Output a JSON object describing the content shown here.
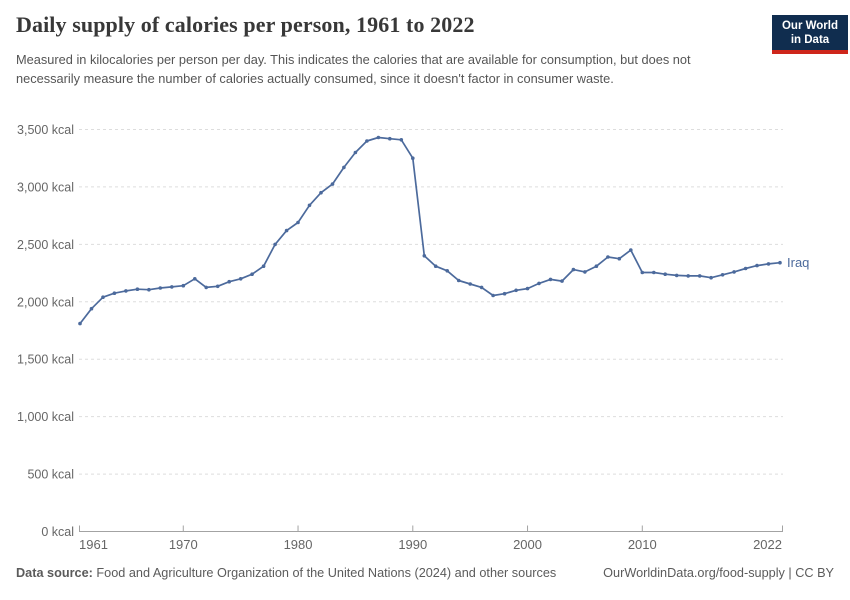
{
  "header": {
    "title": "Daily supply of calories per person, 1961 to 2022",
    "subtitle": "Measured in kilocalories per person per day. This indicates the calories that are available for consumption, but does not necessarily measure the number of calories actually consumed, since it doesn't factor in consumer waste.",
    "logo": {
      "line1": "Our World",
      "line2": "in Data",
      "bg_color": "#102D4F",
      "bar_color": "#CE261B"
    }
  },
  "chart_data": {
    "type": "line",
    "title": "Daily supply of calories per person, 1961 to 2022",
    "entity": "Iraq",
    "end_label": "Iraq",
    "line_color": "#4C6A9C",
    "grid": "horizontal-dashed",
    "grid_color": "#dddddd",
    "axis_color": "#a3a3a3",
    "tick_text_color": "#666666",
    "xlim": [
      1961,
      2022
    ],
    "ylim": [
      0,
      3500
    ],
    "xlabel": "",
    "ylabel": "",
    "xticks": [
      {
        "value": 1961,
        "label": "1961",
        "align": "start"
      },
      {
        "value": 1970,
        "label": "1970",
        "align": "middle"
      },
      {
        "value": 1980,
        "label": "1980",
        "align": "middle"
      },
      {
        "value": 1990,
        "label": "1990",
        "align": "middle"
      },
      {
        "value": 2000,
        "label": "2000",
        "align": "middle"
      },
      {
        "value": 2010,
        "label": "2010",
        "align": "middle"
      },
      {
        "value": 2022,
        "label": "2022",
        "align": "end"
      }
    ],
    "yticks": [
      {
        "value": 0,
        "label": "0 kcal"
      },
      {
        "value": 500,
        "label": "500 kcal"
      },
      {
        "value": 1000,
        "label": "1,000 kcal"
      },
      {
        "value": 1500,
        "label": "1,500 kcal"
      },
      {
        "value": 2000,
        "label": "2,000 kcal"
      },
      {
        "value": 2500,
        "label": "2,500 kcal"
      },
      {
        "value": 3000,
        "label": "3,000 kcal"
      },
      {
        "value": 3500,
        "label": "3,500 kcal"
      }
    ],
    "x": [
      1961,
      1962,
      1963,
      1964,
      1965,
      1966,
      1967,
      1968,
      1969,
      1970,
      1971,
      1972,
      1973,
      1974,
      1975,
      1976,
      1977,
      1978,
      1979,
      1980,
      1981,
      1982,
      1983,
      1984,
      1985,
      1986,
      1987,
      1988,
      1989,
      1990,
      1991,
      1992,
      1993,
      1994,
      1995,
      1996,
      1997,
      1998,
      1999,
      2000,
      2001,
      2002,
      2003,
      2004,
      2005,
      2006,
      2007,
      2008,
      2009,
      2010,
      2011,
      2012,
      2013,
      2014,
      2015,
      2016,
      2017,
      2018,
      2019,
      2020,
      2021,
      2022
    ],
    "series": [
      {
        "name": "Iraq",
        "color": "#4C6A9C",
        "values": [
          1810,
          1940,
          2040,
          2075,
          2095,
          2110,
          2105,
          2120,
          2130,
          2140,
          2200,
          2125,
          2135,
          2175,
          2200,
          2240,
          2310,
          2500,
          2620,
          2690,
          2840,
          2950,
          3025,
          3170,
          3300,
          3400,
          3430,
          3420,
          3410,
          3250,
          2400,
          2310,
          2270,
          2185,
          2155,
          2125,
          2055,
          2070,
          2100,
          2115,
          2160,
          2195,
          2180,
          2280,
          2260,
          2310,
          2390,
          2375,
          2450,
          2255,
          2255,
          2240,
          2230,
          2225,
          2225,
          2210,
          2235,
          2260,
          2290,
          2315,
          2330,
          2340
        ]
      }
    ]
  },
  "footer": {
    "datasource_label": "Data source:",
    "datasource_text": "Food and Agriculture Organization of the United Nations (2024) and other sources",
    "link_text": "OurWorldinData.org/food-supply | CC BY"
  }
}
